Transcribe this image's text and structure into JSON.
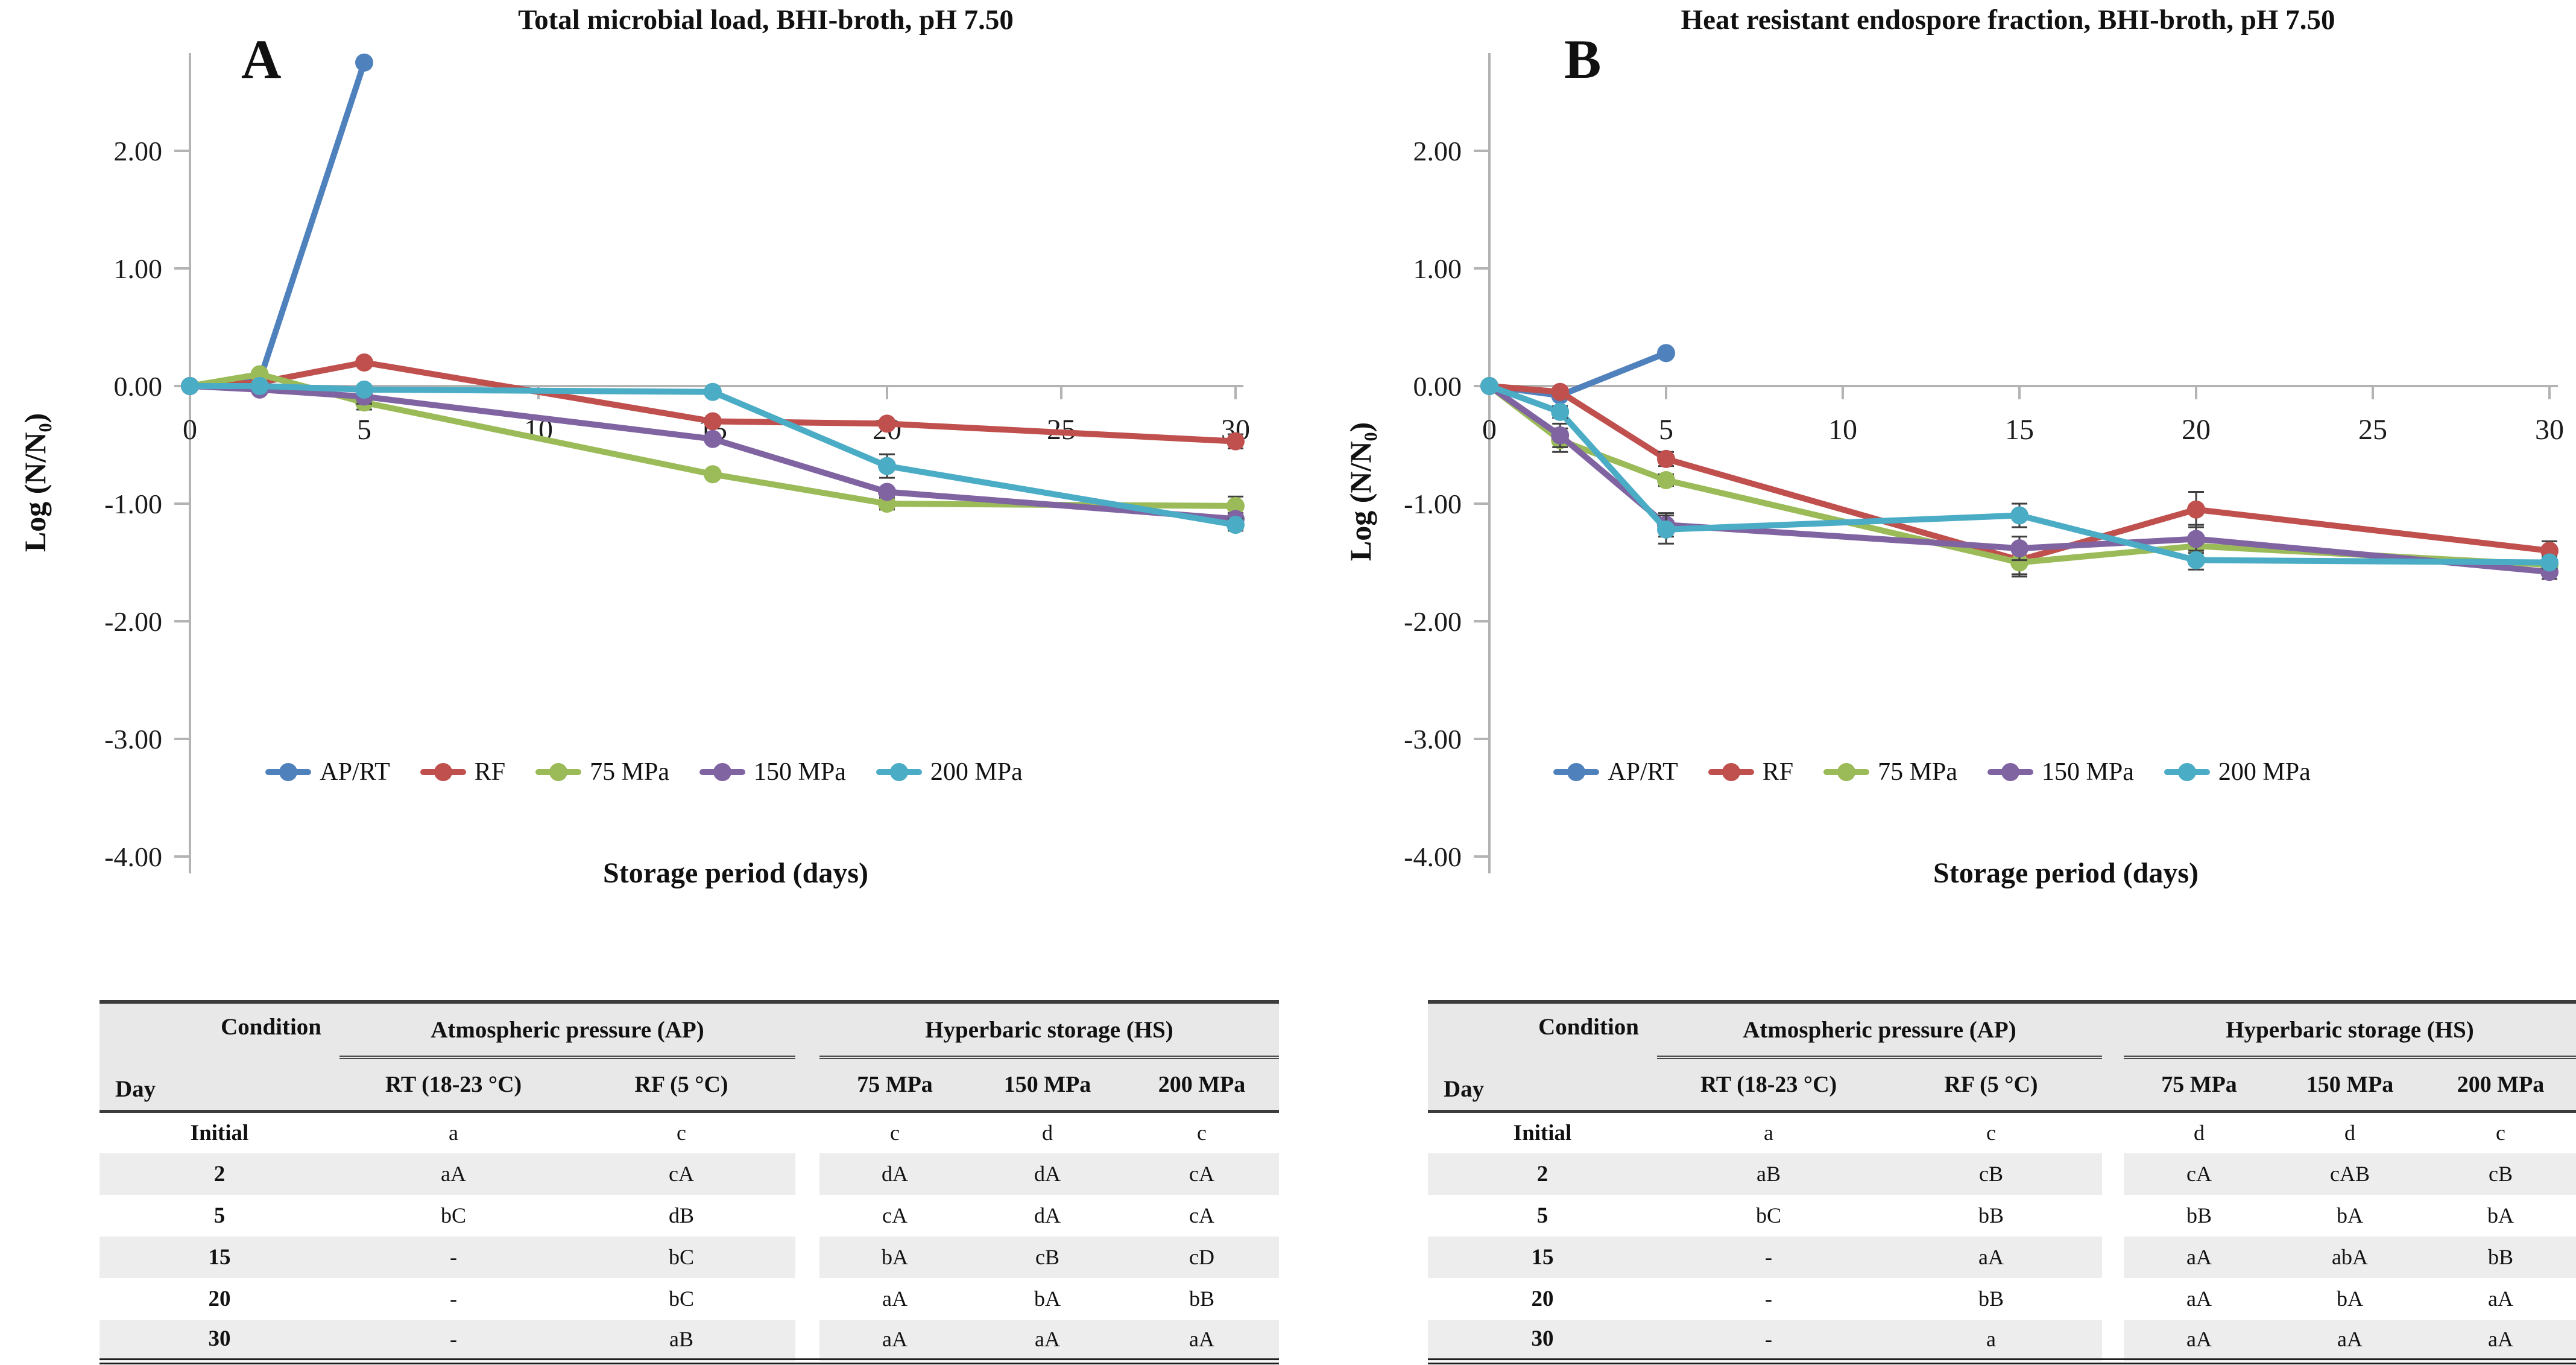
{
  "colors": {
    "ap_rt": "#4F81BD",
    "rf": "#C0504D",
    "mpa75": "#9BBB59",
    "mpa150": "#8064A2",
    "mpa200": "#4BACC6",
    "axis": "#b3b3b3",
    "error_bar": "#3f3f3f"
  },
  "chart_data": [
    {
      "type": "line",
      "panel_label": "A",
      "title": "Total microbial load, BHI-broth, pH 7.50",
      "xlabel": "Storage period (days)",
      "ylabel": "Log (N/N₀)",
      "xlim": [
        0,
        30
      ],
      "ylim": [
        -4.0,
        2.85
      ],
      "grid": false,
      "legend_position": "bottom",
      "xticks": [
        0,
        5,
        10,
        15,
        20,
        25,
        30
      ],
      "yticks": [
        {
          "value": 2,
          "label": "2.00"
        },
        {
          "value": 1,
          "label": "1.00"
        },
        {
          "value": 0,
          "label": "0.00"
        },
        {
          "value": -1,
          "label": "-1.00"
        },
        {
          "value": -2,
          "label": "-2.00"
        },
        {
          "value": -3,
          "label": "-3.00"
        },
        {
          "value": -4,
          "label": "-4.00"
        }
      ],
      "series": [
        {
          "name": "AP/RT",
          "color": "#4F81BD",
          "x": [
            0,
            2,
            5
          ],
          "y": [
            0.0,
            0.05,
            2.75
          ],
          "err": [
            0,
            0,
            0
          ]
        },
        {
          "name": "RF",
          "color": "#C0504D",
          "x": [
            0,
            2,
            5,
            15,
            20,
            30
          ],
          "y": [
            0.0,
            0.03,
            0.2,
            -0.3,
            -0.32,
            -0.47
          ],
          "err": [
            0,
            0,
            0,
            0,
            0,
            0.06
          ]
        },
        {
          "name": "75 MPa",
          "color": "#9BBB59",
          "x": [
            0,
            2,
            5,
            15,
            20,
            30
          ],
          "y": [
            0.0,
            0.1,
            -0.14,
            -0.75,
            -1.0,
            -1.02
          ],
          "err": [
            0,
            0,
            0.06,
            0,
            0.05,
            0.08
          ]
        },
        {
          "name": "150 MPa",
          "color": "#8064A2",
          "x": [
            0,
            2,
            5,
            15,
            20,
            30
          ],
          "y": [
            0.0,
            -0.03,
            -0.09,
            -0.45,
            -0.9,
            -1.13
          ],
          "err": [
            0,
            0,
            0.06,
            0,
            0,
            0.05
          ]
        },
        {
          "name": "200 MPa",
          "color": "#4BACC6",
          "x": [
            0,
            2,
            5,
            15,
            20,
            30
          ],
          "y": [
            0.0,
            0.0,
            -0.03,
            -0.05,
            -0.68,
            -1.18
          ],
          "err": [
            0,
            0,
            0,
            0,
            0.1,
            0.05
          ]
        }
      ]
    },
    {
      "type": "line",
      "panel_label": "B",
      "title": "Heat resistant endospore fraction, BHI-broth, pH 7.50",
      "xlabel": "Storage period (days)",
      "ylabel": "Log (N/N₀)",
      "xlim": [
        0,
        30
      ],
      "ylim": [
        -4.0,
        2.85
      ],
      "grid": false,
      "legend_position": "bottom",
      "xticks": [
        0,
        5,
        10,
        15,
        20,
        25,
        30
      ],
      "yticks": [
        {
          "value": 2,
          "label": "2.00"
        },
        {
          "value": 1,
          "label": "1.00"
        },
        {
          "value": 0,
          "label": "0.00"
        },
        {
          "value": -1,
          "label": "-1.00"
        },
        {
          "value": -2,
          "label": "-2.00"
        },
        {
          "value": -3,
          "label": "-3.00"
        },
        {
          "value": -4,
          "label": "-4.00"
        }
      ],
      "series": [
        {
          "name": "AP/RT",
          "color": "#4F81BD",
          "x": [
            0,
            2,
            5
          ],
          "y": [
            0.0,
            -0.08,
            0.28
          ],
          "err": [
            0,
            0,
            0
          ]
        },
        {
          "name": "RF",
          "color": "#C0504D",
          "x": [
            0,
            2,
            5,
            15,
            20,
            30
          ],
          "y": [
            0.0,
            -0.05,
            -0.62,
            -1.48,
            -1.05,
            -1.4
          ],
          "err": [
            0,
            0,
            0.06,
            0.12,
            0.15,
            0.08
          ]
        },
        {
          "name": "75 MPa",
          "color": "#9BBB59",
          "x": [
            0,
            2,
            5,
            15,
            20,
            30
          ],
          "y": [
            0.0,
            -0.46,
            -0.8,
            -1.5,
            -1.36,
            -1.52
          ],
          "err": [
            0,
            0.1,
            0.05,
            0.12,
            0.06,
            0.05
          ]
        },
        {
          "name": "150 MPa",
          "color": "#8064A2",
          "x": [
            0,
            2,
            5,
            15,
            20,
            30
          ],
          "y": [
            0.0,
            -0.42,
            -1.18,
            -1.38,
            -1.3,
            -1.58
          ],
          "err": [
            0,
            0.1,
            0.1,
            0.1,
            0.12,
            0.06
          ]
        },
        {
          "name": "200 MPa",
          "color": "#4BACC6",
          "x": [
            0,
            2,
            5,
            15,
            20,
            30
          ],
          "y": [
            0.0,
            -0.22,
            -1.22,
            -1.1,
            -1.48,
            -1.5
          ],
          "err": [
            0,
            0.05,
            0.12,
            0.1,
            0.08,
            0.05
          ]
        }
      ]
    }
  ],
  "tables": [
    {
      "corner_top": "Condition",
      "corner_bottom": "Day",
      "groups": [
        {
          "label": "Atmospheric pressure (AP)",
          "span": 2
        },
        {
          "label": "Hyperbaric storage (HS)",
          "span": 3
        }
      ],
      "columns": [
        "RT (18-23 °C)",
        "RF (5 °C)",
        "75 MPa",
        "150 MPa",
        "200 MPa"
      ],
      "rows": [
        {
          "day": "Initial",
          "values": [
            "a",
            "c",
            "c",
            "d",
            "c"
          ]
        },
        {
          "day": "2",
          "values": [
            "aA",
            "cA",
            "dA",
            "dA",
            "cA"
          ]
        },
        {
          "day": "5",
          "values": [
            "bC",
            "dB",
            "cA",
            "dA",
            "cA"
          ]
        },
        {
          "day": "15",
          "values": [
            "-",
            "bC",
            "bA",
            "cB",
            "cD"
          ]
        },
        {
          "day": "20",
          "values": [
            "-",
            "bC",
            "aA",
            "bA",
            "bB"
          ]
        },
        {
          "day": "30",
          "values": [
            "-",
            "aB",
            "aA",
            "aA",
            "aA"
          ]
        }
      ]
    },
    {
      "corner_top": "Condition",
      "corner_bottom": "Day",
      "groups": [
        {
          "label": "Atmospheric pressure (AP)",
          "span": 2
        },
        {
          "label": "Hyperbaric storage (HS)",
          "span": 3
        }
      ],
      "columns": [
        "RT (18-23 °C)",
        "RF (5 °C)",
        "75 MPa",
        "150 MPa",
        "200 MPa"
      ],
      "rows": [
        {
          "day": "Initial",
          "values": [
            "a",
            "c",
            "d",
            "d",
            "c"
          ]
        },
        {
          "day": "2",
          "values": [
            "aB",
            "cB",
            "cA",
            "cAB",
            "cB"
          ]
        },
        {
          "day": "5",
          "values": [
            "bC",
            "bB",
            "bB",
            "bA",
            "bA"
          ]
        },
        {
          "day": "15",
          "values": [
            "-",
            "aA",
            "aA",
            "abA",
            "bB"
          ]
        },
        {
          "day": "20",
          "values": [
            "-",
            "bB",
            "aA",
            "bA",
            "aA"
          ]
        },
        {
          "day": "30",
          "values": [
            "-",
            "a",
            "aA",
            "aA",
            "aA"
          ]
        }
      ]
    }
  ]
}
